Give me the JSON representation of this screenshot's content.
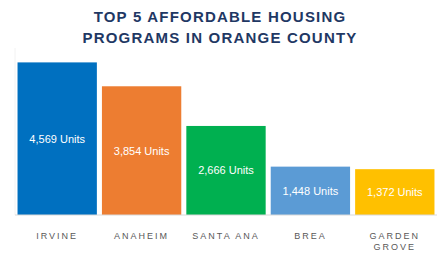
{
  "chart_data": {
    "type": "bar",
    "title": "TOP 5 AFFORDABLE HOUSING PROGRAMS IN ORANGE COUNTY",
    "categories": [
      "IRVINE",
      "ANAHEIM",
      "SANTA ANA",
      "BREA",
      "GARDEN GROVE"
    ],
    "values": [
      4569,
      3854,
      2666,
      1448,
      1372
    ],
    "value_labels": [
      "4,569 Units",
      "3,854 Units",
      "2,666 Units",
      "1,448 Units",
      "1,372 Units"
    ],
    "colors": [
      "#0070c0",
      "#ed7d31",
      "#00b050",
      "#5b9bd5",
      "#ffc000"
    ],
    "ylim": [
      0,
      5000
    ],
    "data_labels": true,
    "tick_labels": "x",
    "grid": false
  }
}
